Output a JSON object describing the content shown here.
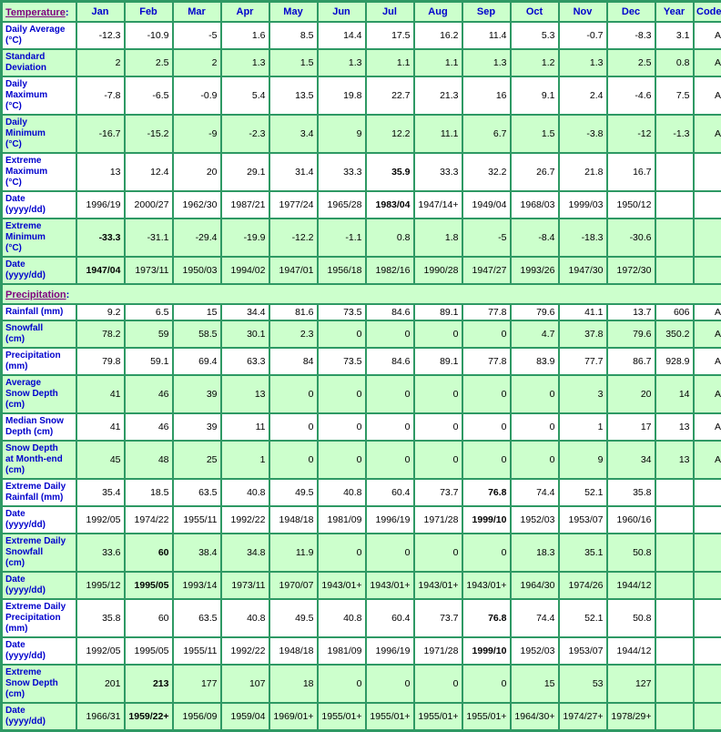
{
  "colors": {
    "border": "#2E9964",
    "row_green": "#CCFFCC",
    "row_white": "#FFFFFF",
    "label_text": "#0000CC",
    "section_title_text": "#800080",
    "data_text": "#000000"
  },
  "columns": [
    "Jan",
    "Feb",
    "Mar",
    "Apr",
    "May",
    "Jun",
    "Jul",
    "Aug",
    "Sep",
    "Oct",
    "Nov",
    "Dec",
    "Year",
    "Code"
  ],
  "sections": [
    {
      "title": "Temperature",
      "colon": ":",
      "rows": [
        {
          "label": "Daily Average\n(°C)",
          "bg": "white",
          "bold": [],
          "values": [
            "-12.3",
            "-10.9",
            "-5",
            "1.6",
            "8.5",
            "14.4",
            "17.5",
            "16.2",
            "11.4",
            "5.3",
            "-0.7",
            "-8.3",
            "3.1",
            "A"
          ]
        },
        {
          "label": "Standard\nDeviation",
          "bg": "green",
          "bold": [],
          "values": [
            "2",
            "2.5",
            "2",
            "1.3",
            "1.5",
            "1.3",
            "1.1",
            "1.1",
            "1.3",
            "1.2",
            "1.3",
            "2.5",
            "0.8",
            "A"
          ]
        },
        {
          "label": "Daily\nMaximum\n(°C)",
          "bg": "white",
          "bold": [],
          "values": [
            "-7.8",
            "-6.5",
            "-0.9",
            "5.4",
            "13.5",
            "19.8",
            "22.7",
            "21.3",
            "16",
            "9.1",
            "2.4",
            "-4.6",
            "7.5",
            "A"
          ]
        },
        {
          "label": "Daily\nMinimum\n(°C)",
          "bg": "green",
          "bold": [],
          "values": [
            "-16.7",
            "-15.2",
            "-9",
            "-2.3",
            "3.4",
            "9",
            "12.2",
            "11.1",
            "6.7",
            "1.5",
            "-3.8",
            "-12",
            "-1.3",
            "A"
          ]
        },
        {
          "label": "Extreme\nMaximum\n(°C)",
          "bg": "white",
          "bold": [
            6
          ],
          "values": [
            "13",
            "12.4",
            "20",
            "29.1",
            "31.4",
            "33.3",
            "35.9",
            "33.3",
            "32.2",
            "26.7",
            "21.8",
            "16.7",
            "",
            ""
          ]
        },
        {
          "label": "Date\n(yyyy/dd)",
          "bg": "white",
          "bold": [
            6
          ],
          "values": [
            "1996/19",
            "2000/27",
            "1962/30",
            "1987/21",
            "1977/24",
            "1965/28",
            "1983/04",
            "1947/14+",
            "1949/04",
            "1968/03",
            "1999/03",
            "1950/12",
            "",
            ""
          ]
        },
        {
          "label": "Extreme\nMinimum\n(°C)",
          "bg": "green",
          "bold": [
            0
          ],
          "values": [
            "-33.3",
            "-31.1",
            "-29.4",
            "-19.9",
            "-12.2",
            "-1.1",
            "0.8",
            "1.8",
            "-5",
            "-8.4",
            "-18.3",
            "-30.6",
            "",
            ""
          ]
        },
        {
          "label": "Date\n(yyyy/dd)",
          "bg": "green",
          "bold": [
            0
          ],
          "values": [
            "1947/04",
            "1973/11",
            "1950/03",
            "1994/02",
            "1947/01",
            "1956/18",
            "1982/16",
            "1990/28",
            "1947/27",
            "1993/26",
            "1947/30",
            "1972/30",
            "",
            ""
          ]
        }
      ]
    },
    {
      "title": "Precipitation",
      "colon": ":",
      "rows": [
        {
          "label": "Rainfall (mm)",
          "bg": "white",
          "bold": [],
          "values": [
            "9.2",
            "6.5",
            "15",
            "34.4",
            "81.6",
            "73.5",
            "84.6",
            "89.1",
            "77.8",
            "79.6",
            "41.1",
            "13.7",
            "606",
            "A"
          ]
        },
        {
          "label": "Snowfall\n(cm)",
          "bg": "green",
          "bold": [],
          "values": [
            "78.2",
            "59",
            "58.5",
            "30.1",
            "2.3",
            "0",
            "0",
            "0",
            "0",
            "4.7",
            "37.8",
            "79.6",
            "350.2",
            "A"
          ]
        },
        {
          "label": "Precipitation\n(mm)",
          "bg": "white",
          "bold": [],
          "values": [
            "79.8",
            "59.1",
            "69.4",
            "63.3",
            "84",
            "73.5",
            "84.6",
            "89.1",
            "77.8",
            "83.9",
            "77.7",
            "86.7",
            "928.9",
            "A"
          ]
        },
        {
          "label": "Average\nSnow Depth\n(cm)",
          "bg": "green",
          "bold": [],
          "values": [
            "41",
            "46",
            "39",
            "13",
            "0",
            "0",
            "0",
            "0",
            "0",
            "0",
            "3",
            "20",
            "14",
            "A"
          ]
        },
        {
          "label": "Median Snow\nDepth (cm)",
          "bg": "white",
          "bold": [],
          "values": [
            "41",
            "46",
            "39",
            "11",
            "0",
            "0",
            "0",
            "0",
            "0",
            "0",
            "1",
            "17",
            "13",
            "A"
          ]
        },
        {
          "label": "Snow Depth\nat Month-end\n(cm)",
          "bg": "green",
          "bold": [],
          "values": [
            "45",
            "48",
            "25",
            "1",
            "0",
            "0",
            "0",
            "0",
            "0",
            "0",
            "9",
            "34",
            "13",
            "A"
          ]
        },
        {
          "label": "Extreme Daily\nRainfall (mm)",
          "bg": "white",
          "bold": [
            8
          ],
          "values": [
            "35.4",
            "18.5",
            "63.5",
            "40.8",
            "49.5",
            "40.8",
            "60.4",
            "73.7",
            "76.8",
            "74.4",
            "52.1",
            "35.8",
            "",
            ""
          ]
        },
        {
          "label": "Date\n(yyyy/dd)",
          "bg": "white",
          "bold": [
            8
          ],
          "values": [
            "1992/05",
            "1974/22",
            "1955/11",
            "1992/22",
            "1948/18",
            "1981/09",
            "1996/19",
            "1971/28",
            "1999/10",
            "1952/03",
            "1953/07",
            "1960/16",
            "",
            ""
          ]
        },
        {
          "label": "Extreme Daily\nSnowfall\n(cm)",
          "bg": "green",
          "bold": [
            1
          ],
          "values": [
            "33.6",
            "60",
            "38.4",
            "34.8",
            "11.9",
            "0",
            "0",
            "0",
            "0",
            "18.3",
            "35.1",
            "50.8",
            "",
            ""
          ]
        },
        {
          "label": "Date\n(yyyy/dd)",
          "bg": "green",
          "bold": [
            1
          ],
          "values": [
            "1995/12",
            "1995/05",
            "1993/14",
            "1973/11",
            "1970/07",
            "1943/01+",
            "1943/01+",
            "1943/01+",
            "1943/01+",
            "1964/30",
            "1974/26",
            "1944/12",
            "",
            ""
          ]
        },
        {
          "label": "Extreme Daily\nPrecipitation\n(mm)",
          "bg": "white",
          "bold": [
            8
          ],
          "values": [
            "35.8",
            "60",
            "63.5",
            "40.8",
            "49.5",
            "40.8",
            "60.4",
            "73.7",
            "76.8",
            "74.4",
            "52.1",
            "50.8",
            "",
            ""
          ]
        },
        {
          "label": "Date\n(yyyy/dd)",
          "bg": "white",
          "bold": [
            8
          ],
          "values": [
            "1992/05",
            "1995/05",
            "1955/11",
            "1992/22",
            "1948/18",
            "1981/09",
            "1996/19",
            "1971/28",
            "1999/10",
            "1952/03",
            "1953/07",
            "1944/12",
            "",
            ""
          ]
        },
        {
          "label": "Extreme\nSnow Depth\n(cm)",
          "bg": "green",
          "bold": [
            1
          ],
          "values": [
            "201",
            "213",
            "177",
            "107",
            "18",
            "0",
            "0",
            "0",
            "0",
            "15",
            "53",
            "127",
            "",
            ""
          ]
        },
        {
          "label": "Date\n(yyyy/dd)",
          "bg": "green",
          "bold": [
            1
          ],
          "values": [
            "1966/31",
            "1959/22+",
            "1956/09",
            "1959/04",
            "1969/01+",
            "1955/01+",
            "1955/01+",
            "1955/01+",
            "1955/01+",
            "1964/30+",
            "1974/27+",
            "1978/29+",
            "",
            ""
          ]
        }
      ]
    }
  ]
}
